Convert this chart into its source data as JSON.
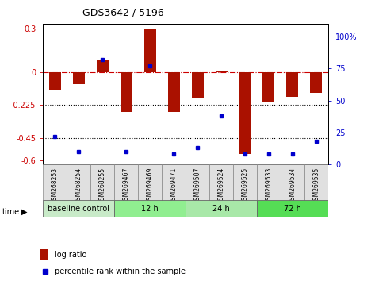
{
  "title": "GDS3642 / 5196",
  "samples": [
    "GSM268253",
    "GSM268254",
    "GSM268255",
    "GSM269467",
    "GSM269469",
    "GSM269471",
    "GSM269507",
    "GSM269524",
    "GSM269525",
    "GSM269533",
    "GSM269534",
    "GSM269535"
  ],
  "log_ratio": [
    -0.12,
    -0.08,
    0.08,
    -0.27,
    0.29,
    -0.27,
    -0.18,
    0.01,
    -0.56,
    -0.2,
    -0.17,
    -0.14
  ],
  "percentile_rank": [
    22,
    10,
    82,
    10,
    77,
    8,
    13,
    38,
    8,
    8,
    8,
    18
  ],
  "ylim_left": [
    -0.63,
    0.33
  ],
  "ylim_right": [
    0,
    110
  ],
  "hlines": [
    0,
    -0.225,
    -0.45
  ],
  "hline_styles": [
    "dashdot",
    "dotted",
    "dotted"
  ],
  "hline_colors": [
    "#cc0000",
    "#000000",
    "#000000"
  ],
  "bar_color": "#aa1100",
  "dot_color": "#0000cc",
  "groups": [
    {
      "label": "baseline control",
      "start": 0,
      "end": 3,
      "color": "#c8eac8"
    },
    {
      "label": "12 h",
      "start": 3,
      "end": 6,
      "color": "#90ee90"
    },
    {
      "label": "24 h",
      "start": 6,
      "end": 9,
      "color": "#a8e8a8"
    },
    {
      "label": "72 h",
      "start": 9,
      "end": 12,
      "color": "#55dd55"
    }
  ],
  "legend_log_ratio": "log ratio",
  "legend_percentile": "percentile rank within the sample",
  "left_yticks": [
    0.3,
    0,
    -0.225,
    -0.45,
    -0.6
  ],
  "right_yticks": [
    100,
    75,
    50,
    25,
    0
  ],
  "xlabel_time": "time"
}
